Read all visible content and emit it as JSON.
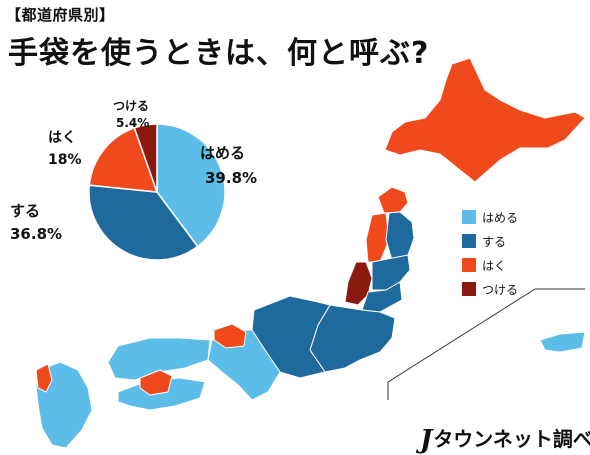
{
  "header": {
    "tag": "【都道府県別】",
    "title": "手袋を使うときは、何と呼ぶ?"
  },
  "chart_data": [
    {
      "type": "pie",
      "categories": [
        "はめる",
        "する",
        "はく",
        "つける"
      ],
      "values": [
        39.8,
        36.8,
        18,
        5.4
      ],
      "value_labels": [
        "39.8%",
        "36.8%",
        "18%",
        "5.4%"
      ],
      "colors": [
        "#5bbde8",
        "#1e6a9c",
        "#f04a1c",
        "#8a1a10"
      ]
    }
  ],
  "legend": [
    {
      "label": "はめる",
      "color": "#5bbde8"
    },
    {
      "label": "する",
      "color": "#1e6a9c"
    },
    {
      "label": "はく",
      "color": "#f04a1c"
    },
    {
      "label": "つける",
      "color": "#8a1a10"
    }
  ],
  "map": {
    "regions": [
      {
        "name": "hokkaido",
        "answer": "はく"
      },
      {
        "name": "aomori",
        "answer": "はく"
      },
      {
        "name": "akita",
        "answer": "はく"
      },
      {
        "name": "iwate",
        "answer": "する"
      },
      {
        "name": "miyagi",
        "answer": "する"
      },
      {
        "name": "yamagata",
        "answer": "つける"
      },
      {
        "name": "fukushima",
        "answer": "する"
      },
      {
        "name": "kanto",
        "answer": "する"
      },
      {
        "name": "chubu",
        "answer": "する"
      },
      {
        "name": "kinki",
        "answer": "はめる"
      },
      {
        "name": "shiga",
        "answer": "はく"
      },
      {
        "name": "chugoku",
        "answer": "はめる"
      },
      {
        "name": "shikoku",
        "answer": "はめる"
      },
      {
        "name": "kagawa",
        "answer": "はく"
      },
      {
        "name": "kyushu",
        "answer": "はめる"
      },
      {
        "name": "nagasaki",
        "answer": "はく"
      },
      {
        "name": "okinawa",
        "answer": "はめる"
      }
    ]
  },
  "brand": {
    "mark": "J",
    "name": "タウンネット調べ"
  }
}
